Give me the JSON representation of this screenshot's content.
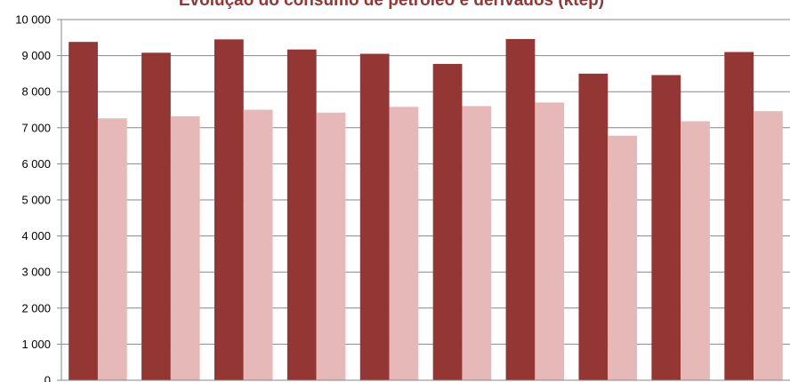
{
  "chart_data": {
    "type": "bar",
    "title": "Evolução do consumo de petróleo e derivados (ktep)",
    "xlabel": "",
    "ylabel": "",
    "ylim": [
      0,
      10000
    ],
    "yticks": [
      "0",
      "1 000",
      "2 000",
      "3 000",
      "4 000",
      "5 000",
      "6 000",
      "7 000",
      "8 000",
      "9 000",
      "10 000"
    ],
    "categories": [
      "",
      "",
      "",
      "",
      "",
      "",
      "",
      "",
      "",
      ""
    ],
    "series": [
      {
        "values": [
          9380,
          9080,
          9450,
          9170,
          9050,
          8770,
          9460,
          8500,
          8460,
          9100
        ]
      },
      {
        "values": [
          7260,
          7320,
          7500,
          7420,
          7580,
          7600,
          7700,
          6780,
          7180,
          7460
        ]
      }
    ],
    "colors": [
      "#943634",
      "#e6b9b8"
    ],
    "title_color": "#943634",
    "grid": true,
    "legend": "none"
  }
}
